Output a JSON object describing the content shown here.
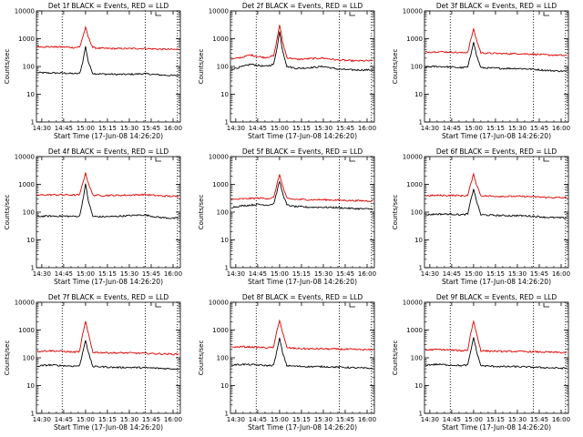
{
  "colors": {
    "events": "#000000",
    "lld": "#e00000",
    "axis": "#000000",
    "background": "#ffffff"
  },
  "shared": {
    "xtick_labels": [
      "14:30",
      "14:45",
      "15:00",
      "15:15",
      "15:30",
      "15:45",
      "16:00"
    ],
    "ytick_labels": [
      "1",
      "10",
      "100",
      "1000",
      "10000"
    ],
    "ylabel": "Counts/sec",
    "xlabel": "Start Time (17-Jun-08 14:26:20)"
  },
  "chart_data": [
    {
      "type": "line",
      "title": "Det 1f BLACK = Events, RED = LLD",
      "xlabel": "Start Time (17-Jun-08 14:26:20)",
      "ylabel": "Counts/sec",
      "xlim": [
        "14:26:20",
        "16:05"
      ],
      "ylim": [
        1,
        10000
      ],
      "yscale": "log",
      "vlines": [
        "14:44",
        "15:41",
        "16:03"
      ],
      "series": [
        {
          "name": "Events",
          "color": "#000000",
          "x": [
            "14:27",
            "14:35",
            "14:45",
            "14:52",
            "14:56",
            "14:58",
            "15:00",
            "15:02",
            "15:05",
            "15:10",
            "15:20",
            "15:30",
            "15:40",
            "15:50",
            "16:00",
            "16:04"
          ],
          "values": [
            60,
            58,
            58,
            55,
            56,
            140,
            520,
            140,
            56,
            54,
            52,
            52,
            55,
            50,
            47,
            47
          ]
        },
        {
          "name": "LLD",
          "color": "#e00000",
          "x": [
            "14:27",
            "14:35",
            "14:45",
            "14:52",
            "14:56",
            "14:58",
            "15:00",
            "15:02",
            "15:05",
            "15:10",
            "15:20",
            "15:30",
            "15:40",
            "15:50",
            "16:00",
            "16:04"
          ],
          "values": [
            520,
            510,
            500,
            480,
            500,
            1100,
            2500,
            1100,
            480,
            450,
            440,
            440,
            445,
            420,
            410,
            410
          ]
        }
      ]
    },
    {
      "type": "line",
      "title": "Det 2f BLACK = Events, RED = LLD",
      "xlabel": "Start Time (17-Jun-08 14:26:20)",
      "ylabel": "Counts/sec",
      "xlim": [
        "14:26:20",
        "16:05"
      ],
      "ylim": [
        1,
        10000
      ],
      "yscale": "log",
      "vlines": [
        "14:44",
        "15:41",
        "16:03"
      ],
      "series": [
        {
          "name": "Events",
          "color": "#000000",
          "x": [
            "14:27",
            "14:35",
            "14:40",
            "14:45",
            "14:50",
            "14:56",
            "14:58",
            "15:00",
            "15:02",
            "15:05",
            "15:12",
            "15:20",
            "15:30",
            "15:40",
            "15:50",
            "16:04"
          ],
          "values": [
            80,
            100,
            120,
            110,
            100,
            120,
            400,
            1800,
            400,
            100,
            85,
            90,
            100,
            80,
            75,
            75
          ]
        },
        {
          "name": "LLD",
          "color": "#e00000",
          "x": [
            "14:27",
            "14:35",
            "14:40",
            "14:45",
            "14:50",
            "14:56",
            "14:58",
            "15:00",
            "15:02",
            "15:05",
            "15:12",
            "15:20",
            "15:30",
            "15:40",
            "15:50",
            "16:04"
          ],
          "values": [
            180,
            220,
            260,
            230,
            210,
            240,
            800,
            3200,
            800,
            210,
            180,
            190,
            200,
            170,
            160,
            160
          ]
        }
      ]
    },
    {
      "type": "line",
      "title": "Det 3f BLACK = Events, RED = LLD",
      "xlabel": "Start Time (17-Jun-08 14:26:20)",
      "ylabel": "Counts/sec",
      "xlim": [
        "14:26:20",
        "16:05"
      ],
      "ylim": [
        1,
        10000
      ],
      "yscale": "log",
      "vlines": [
        "14:44",
        "15:41",
        "16:03"
      ],
      "series": [
        {
          "name": "Events",
          "color": "#000000",
          "x": [
            "14:27",
            "14:35",
            "14:45",
            "14:52",
            "14:56",
            "14:58",
            "15:00",
            "15:02",
            "15:05",
            "15:10",
            "15:20",
            "15:30",
            "15:40",
            "15:50",
            "16:00",
            "16:04"
          ],
          "values": [
            95,
            100,
            95,
            90,
            95,
            250,
            800,
            250,
            90,
            88,
            85,
            85,
            80,
            72,
            68,
            68
          ]
        },
        {
          "name": "LLD",
          "color": "#e00000",
          "x": [
            "14:27",
            "14:35",
            "14:45",
            "14:52",
            "14:56",
            "14:58",
            "15:00",
            "15:02",
            "15:05",
            "15:10",
            "15:20",
            "15:30",
            "15:40",
            "15:50",
            "16:00",
            "16:04"
          ],
          "values": [
            330,
            340,
            330,
            310,
            330,
            900,
            2200,
            900,
            310,
            300,
            290,
            290,
            280,
            260,
            250,
            250
          ]
        }
      ]
    },
    {
      "type": "line",
      "title": "Det 4f BLACK = Events, RED = LLD",
      "xlabel": "Start Time (17-Jun-08 14:26:20)",
      "ylabel": "Counts/sec",
      "xlim": [
        "14:26:20",
        "16:05"
      ],
      "ylim": [
        1,
        10000
      ],
      "yscale": "log",
      "vlines": [
        "14:44",
        "15:41",
        "16:03"
      ],
      "series": [
        {
          "name": "Events",
          "color": "#000000",
          "x": [
            "14:27",
            "14:35",
            "14:45",
            "14:52",
            "14:56",
            "14:58",
            "15:00",
            "15:02",
            "15:05",
            "15:10",
            "15:20",
            "15:30",
            "15:40",
            "15:50",
            "16:00",
            "16:04"
          ],
          "values": [
            70,
            72,
            72,
            70,
            72,
            250,
            1000,
            250,
            70,
            68,
            70,
            75,
            80,
            65,
            60,
            60
          ]
        },
        {
          "name": "LLD",
          "color": "#e00000",
          "x": [
            "14:27",
            "14:35",
            "14:45",
            "14:52",
            "14:56",
            "14:58",
            "15:00",
            "15:02",
            "15:05",
            "15:10",
            "15:20",
            "15:30",
            "15:40",
            "15:50",
            "16:00",
            "16:04"
          ],
          "values": [
            410,
            420,
            420,
            410,
            420,
            1100,
            2500,
            1100,
            410,
            400,
            400,
            410,
            430,
            390,
            370,
            370
          ]
        }
      ]
    },
    {
      "type": "line",
      "title": "Det 5f BLACK = Events, RED = LLD",
      "xlabel": "Start Time (17-Jun-08 14:26:20)",
      "ylabel": "Counts/sec",
      "xlim": [
        "14:26:20",
        "16:05"
      ],
      "ylim": [
        1,
        10000
      ],
      "yscale": "log",
      "vlines": [
        "14:44",
        "15:41",
        "16:03"
      ],
      "series": [
        {
          "name": "Events",
          "color": "#000000",
          "x": [
            "14:27",
            "14:35",
            "14:45",
            "14:52",
            "14:56",
            "14:58",
            "15:00",
            "15:02",
            "15:05",
            "15:10",
            "15:20",
            "15:30",
            "15:40",
            "15:50",
            "16:00",
            "16:04"
          ],
          "values": [
            150,
            170,
            190,
            180,
            200,
            500,
            1300,
            500,
            180,
            160,
            150,
            150,
            145,
            135,
            130,
            130
          ]
        },
        {
          "name": "LLD",
          "color": "#e00000",
          "x": [
            "14:27",
            "14:35",
            "14:45",
            "14:52",
            "14:56",
            "14:58",
            "15:00",
            "15:02",
            "15:05",
            "15:10",
            "15:20",
            "15:30",
            "15:40",
            "15:50",
            "16:00",
            "16:04"
          ],
          "values": [
            280,
            300,
            320,
            310,
            330,
            900,
            2300,
            900,
            310,
            290,
            280,
            280,
            270,
            260,
            255,
            255
          ]
        }
      ]
    },
    {
      "type": "line",
      "title": "Det 6f BLACK = Events, RED = LLD",
      "xlabel": "Start Time (17-Jun-08 14:26:20)",
      "ylabel": "Counts/sec",
      "xlim": [
        "14:26:20",
        "16:05"
      ],
      "ylim": [
        1,
        10000
      ],
      "yscale": "log",
      "vlines": [
        "14:44",
        "15:41",
        "16:03"
      ],
      "series": [
        {
          "name": "Events",
          "color": "#000000",
          "x": [
            "14:27",
            "14:35",
            "14:45",
            "14:52",
            "14:56",
            "14:58",
            "15:00",
            "15:02",
            "15:05",
            "15:10",
            "15:20",
            "15:30",
            "15:40",
            "15:50",
            "16:00",
            "16:04"
          ],
          "values": [
            80,
            85,
            85,
            80,
            85,
            250,
            700,
            250,
            80,
            78,
            75,
            75,
            72,
            65,
            62,
            62
          ]
        },
        {
          "name": "LLD",
          "color": "#e00000",
          "x": [
            "14:27",
            "14:35",
            "14:45",
            "14:52",
            "14:56",
            "14:58",
            "15:00",
            "15:02",
            "15:05",
            "15:10",
            "15:20",
            "15:30",
            "15:40",
            "15:50",
            "16:00",
            "16:04"
          ],
          "values": [
            390,
            400,
            400,
            390,
            400,
            1000,
            2300,
            1000,
            390,
            380,
            370,
            370,
            360,
            340,
            330,
            330
          ]
        }
      ]
    },
    {
      "type": "line",
      "title": "Det 7f BLACK = Events, RED = LLD",
      "xlabel": "Start Time (17-Jun-08 14:26:20)",
      "ylabel": "Counts/sec",
      "xlim": [
        "14:26:20",
        "16:05"
      ],
      "ylim": [
        1,
        10000
      ],
      "yscale": "log",
      "vlines": [
        "14:44",
        "15:41",
        "16:03"
      ],
      "series": [
        {
          "name": "Events",
          "color": "#000000",
          "x": [
            "14:27",
            "14:35",
            "14:45",
            "14:52",
            "14:56",
            "14:58",
            "15:00",
            "15:02",
            "15:05",
            "15:10",
            "15:20",
            "15:30",
            "15:40",
            "15:50",
            "16:00",
            "16:04"
          ],
          "values": [
            50,
            55,
            52,
            50,
            52,
            150,
            450,
            150,
            48,
            48,
            45,
            45,
            44,
            42,
            40,
            40
          ]
        },
        {
          "name": "LLD",
          "color": "#e00000",
          "x": [
            "14:27",
            "14:35",
            "14:45",
            "14:52",
            "14:56",
            "14:58",
            "15:00",
            "15:02",
            "15:05",
            "15:10",
            "15:20",
            "15:30",
            "15:40",
            "15:50",
            "16:00",
            "16:04"
          ],
          "values": [
            170,
            180,
            170,
            160,
            170,
            700,
            2000,
            700,
            160,
            155,
            150,
            150,
            145,
            140,
            135,
            135
          ]
        }
      ]
    },
    {
      "type": "line",
      "title": "Det 8f BLACK = Events, RED = LLD",
      "xlabel": "Start Time (17-Jun-08 14:26:20)",
      "ylabel": "Counts/sec",
      "xlim": [
        "14:26:20",
        "16:05"
      ],
      "ylim": [
        1,
        10000
      ],
      "yscale": "log",
      "vlines": [
        "14:44",
        "15:41",
        "16:03"
      ],
      "series": [
        {
          "name": "Events",
          "color": "#000000",
          "x": [
            "14:27",
            "14:35",
            "14:45",
            "14:52",
            "14:56",
            "14:58",
            "15:00",
            "15:02",
            "15:05",
            "15:10",
            "15:20",
            "15:30",
            "15:40",
            "15:50",
            "16:00",
            "16:04"
          ],
          "values": [
            55,
            58,
            55,
            52,
            55,
            160,
            500,
            160,
            52,
            50,
            48,
            48,
            46,
            44,
            42,
            42
          ]
        },
        {
          "name": "LLD",
          "color": "#e00000",
          "x": [
            "14:27",
            "14:35",
            "14:45",
            "14:52",
            "14:56",
            "14:58",
            "15:00",
            "15:02",
            "15:05",
            "15:10",
            "15:20",
            "15:30",
            "15:40",
            "15:50",
            "16:00",
            "16:04"
          ],
          "values": [
            240,
            250,
            240,
            230,
            240,
            850,
            2300,
            850,
            230,
            220,
            210,
            210,
            205,
            200,
            195,
            195
          ]
        }
      ]
    },
    {
      "type": "line",
      "title": "Det 9f BLACK = Events, RED = LLD",
      "xlabel": "Start Time (17-Jun-08 14:26:20)",
      "ylabel": "Counts/sec",
      "xlim": [
        "14:26:20",
        "16:05"
      ],
      "ylim": [
        1,
        10000
      ],
      "yscale": "log",
      "vlines": [
        "14:44",
        "15:41",
        "16:03"
      ],
      "series": [
        {
          "name": "Events",
          "color": "#000000",
          "x": [
            "14:27",
            "14:35",
            "14:45",
            "14:52",
            "14:56",
            "14:58",
            "15:00",
            "15:02",
            "15:05",
            "15:10",
            "15:20",
            "15:30",
            "15:40",
            "15:50",
            "16:00",
            "16:04"
          ],
          "values": [
            55,
            58,
            55,
            52,
            55,
            170,
            550,
            170,
            52,
            50,
            48,
            48,
            46,
            44,
            42,
            42
          ]
        },
        {
          "name": "LLD",
          "color": "#e00000",
          "x": [
            "14:27",
            "14:35",
            "14:45",
            "14:52",
            "14:56",
            "14:58",
            "15:00",
            "15:02",
            "15:05",
            "15:10",
            "15:20",
            "15:30",
            "15:40",
            "15:50",
            "16:00",
            "16:04"
          ],
          "values": [
            190,
            200,
            190,
            180,
            190,
            750,
            2100,
            750,
            180,
            175,
            170,
            170,
            165,
            160,
            155,
            155
          ]
        }
      ]
    }
  ]
}
